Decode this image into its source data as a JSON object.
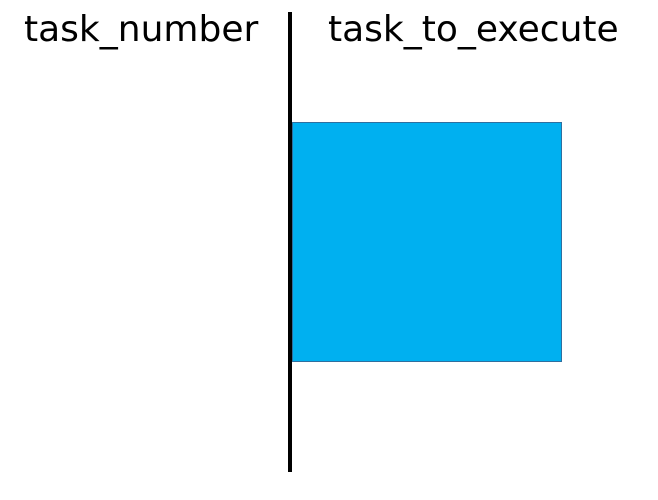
{
  "columns": {
    "left_header": "task_number",
    "right_header": "task_to_execute"
  },
  "block": {
    "fill_color": "#00b0f0",
    "border_color": "#2f6f9f"
  },
  "divider": {
    "color": "#000000"
  }
}
